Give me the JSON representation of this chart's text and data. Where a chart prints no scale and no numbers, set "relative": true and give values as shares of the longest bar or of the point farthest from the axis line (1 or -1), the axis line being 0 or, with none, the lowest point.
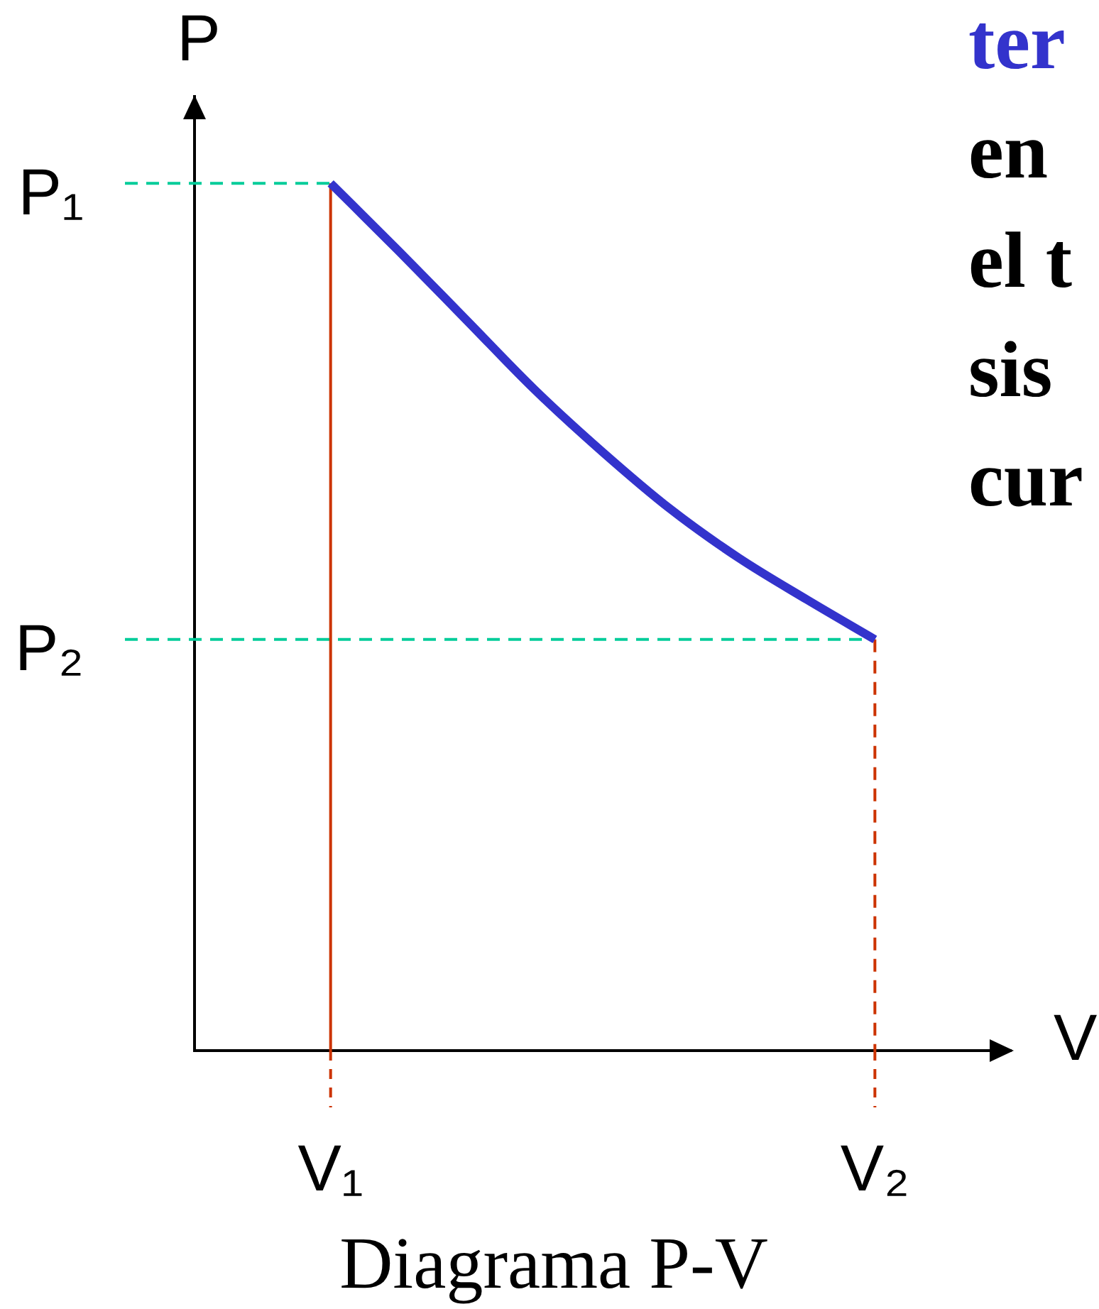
{
  "chart_data": {
    "type": "line",
    "title": "Diagrama P-V",
    "xlabel": "V",
    "ylabel": "P",
    "relative": true,
    "annotations": [
      "ter",
      "en",
      "el t",
      "sis",
      "cur"
    ],
    "categories": [
      null,
      null,
      "V₁",
      null,
      null,
      null,
      null,
      null,
      null,
      null,
      "V₂",
      null,
      null
    ],
    "values": [
      null,
      null,
      1,
      0.922,
      0.842,
      0.762,
      0.69,
      0.624,
      0.568,
      0.52,
      0.474,
      null,
      null
    ],
    "color": "#3333cc",
    "ref_lines": [
      {
        "axis": "y",
        "value": 1,
        "label": "P₁",
        "color": "#00cc99",
        "line_style": "dashed"
      },
      {
        "axis": "y",
        "value": 0.474,
        "label": "P₂",
        "color": "#00cc99",
        "line_style": "dashed"
      },
      {
        "axis": "x",
        "value": "V₁",
        "color": "#cc3300",
        "line_style": "solid"
      },
      {
        "axis": "x",
        "value": "V₂",
        "color": "#cc3300",
        "line_style": "dashed"
      }
    ]
  }
}
